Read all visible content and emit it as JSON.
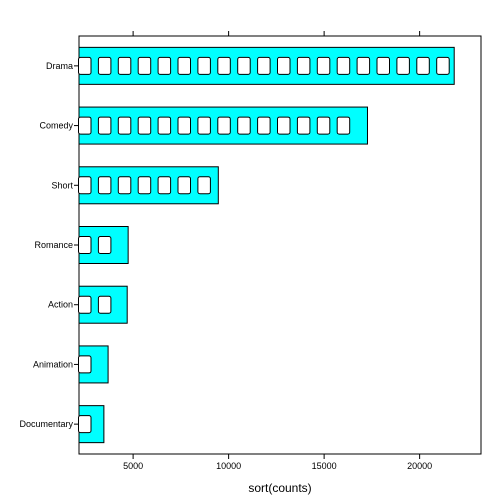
{
  "chart_data": {
    "type": "bar",
    "orientation": "horizontal",
    "title": "",
    "xlabel": "sort(counts)",
    "ylabel": "",
    "categories": [
      "Documentary",
      "Animation",
      "Action",
      "Romance",
      "Short",
      "Comedy",
      "Drama"
    ],
    "values": [
      3470,
      3690,
      4690,
      4740,
      9460,
      17270,
      21810
    ],
    "xlim": [
      2167,
      23213
    ],
    "xticks": [
      5000,
      10000,
      15000,
      20000
    ],
    "xtick_labels": [
      "5000",
      "10000",
      "15000",
      "20000"
    ],
    "xticks_top": true,
    "grid": false,
    "legend": "none",
    "bar_fill": "#00FFFF",
    "bar_stroke": "#000000",
    "bar_pattern": "ladder"
  }
}
